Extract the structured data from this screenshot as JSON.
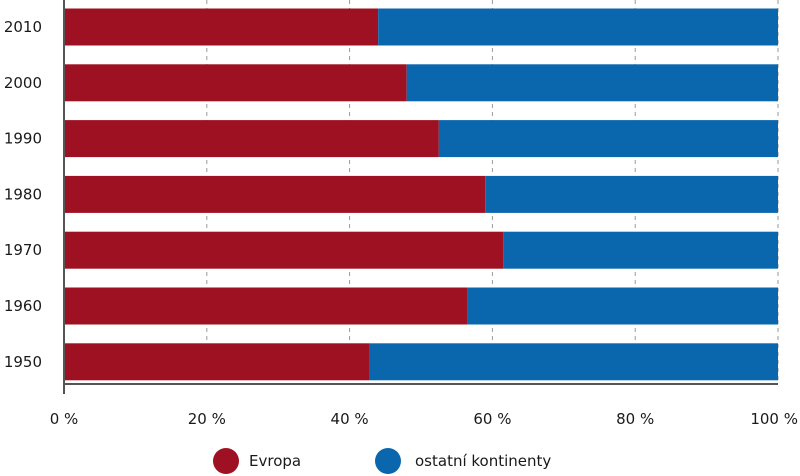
{
  "chart_data": {
    "type": "bar",
    "orientation": "horizontal",
    "stacked": true,
    "categories": [
      "2010",
      "2000",
      "1990",
      "1980",
      "1970",
      "1960",
      "1950"
    ],
    "series": [
      {
        "name": "Evropa",
        "values": [
          44.0,
          48.0,
          52.5,
          59.0,
          61.5,
          56.5,
          42.8
        ],
        "color": "#9e1122"
      },
      {
        "name": "ostatní kontinenty",
        "values": [
          56.0,
          52.0,
          47.5,
          41.0,
          38.5,
          43.5,
          57.2
        ],
        "color": "#0b67ad"
      }
    ],
    "x_ticks": [
      "0 %",
      "20 %",
      "40 %",
      "60 %",
      "80 %",
      "100 %"
    ],
    "xlim": [
      0,
      100
    ],
    "grid": "vertical dashed",
    "legend_position": "bottom"
  }
}
